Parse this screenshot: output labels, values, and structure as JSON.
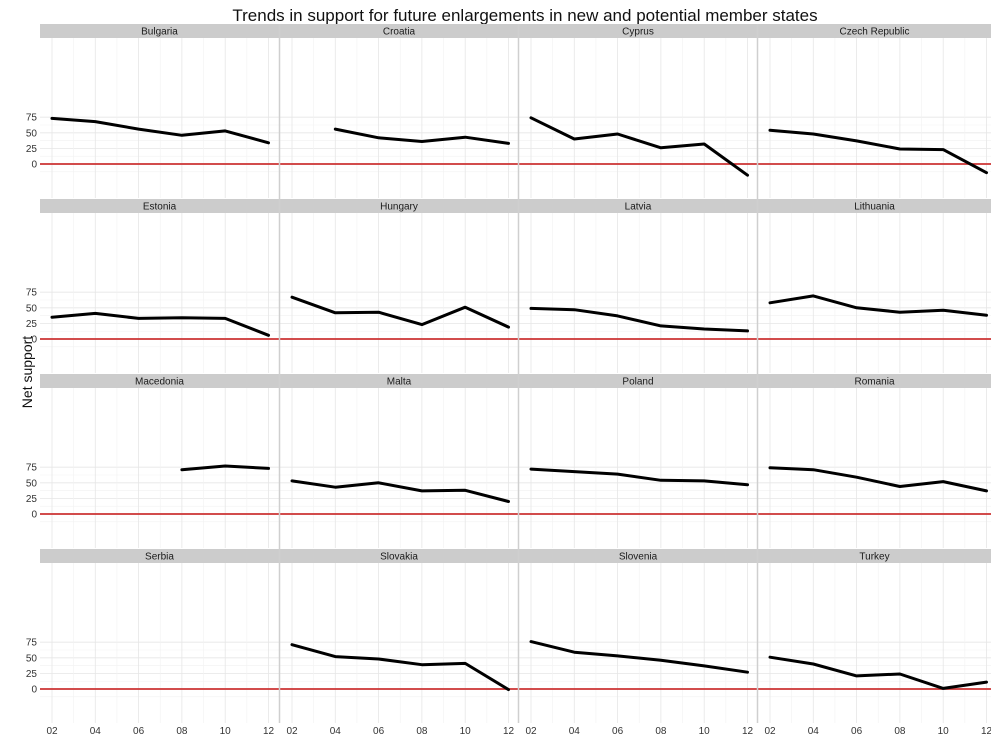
{
  "chart_data": {
    "type": "line",
    "title": "Trends in support for future enlargements in new and potential member states",
    "ylabel": "Net support",
    "xlabel": "",
    "x_ticks": [
      "02",
      "04",
      "06",
      "08",
      "10",
      "12"
    ],
    "x": [
      2,
      4,
      6,
      8,
      10,
      12
    ],
    "y_ticks": [
      0,
      25,
      50,
      75
    ],
    "ylim": [
      -20,
      80
    ],
    "xlim": [
      1.5,
      12.5
    ],
    "reference_line": {
      "y": 0,
      "color": "#cc3333"
    },
    "line_color": "#000000",
    "grid": true,
    "layout": "facet-grid 4x4",
    "panels": [
      {
        "name": "Bulgaria",
        "values": [
          73,
          68,
          56,
          46,
          53,
          34
        ]
      },
      {
        "name": "Croatia",
        "values": [
          null,
          56,
          42,
          36,
          43,
          33
        ]
      },
      {
        "name": "Cyprus",
        "values": [
          74,
          40,
          48,
          26,
          32,
          -18
        ]
      },
      {
        "name": "Czech Republic",
        "values": [
          54,
          48,
          37,
          24,
          23,
          -14
        ]
      },
      {
        "name": "Estonia",
        "values": [
          35,
          41,
          33,
          34,
          33,
          6
        ]
      },
      {
        "name": "Hungary",
        "values": [
          67,
          42,
          43,
          23,
          51,
          19
        ]
      },
      {
        "name": "Latvia",
        "values": [
          49,
          47,
          37,
          21,
          16,
          13
        ]
      },
      {
        "name": "Lithuania",
        "values": [
          58,
          69,
          50,
          43,
          46,
          38
        ]
      },
      {
        "name": "Macedonia",
        "values": [
          null,
          null,
          null,
          71,
          77,
          73
        ]
      },
      {
        "name": "Malta",
        "values": [
          53,
          43,
          50,
          37,
          38,
          20
        ]
      },
      {
        "name": "Poland",
        "values": [
          72,
          68,
          64,
          54,
          53,
          47
        ]
      },
      {
        "name": "Romania",
        "values": [
          74,
          71,
          59,
          44,
          52,
          37
        ]
      },
      {
        "name": "Serbia",
        "values": [
          null,
          null,
          null,
          null,
          null,
          null
        ]
      },
      {
        "name": "Slovakia",
        "values": [
          71,
          52,
          48,
          39,
          41,
          -1
        ]
      },
      {
        "name": "Slovenia",
        "values": [
          76,
          59,
          53,
          46,
          37,
          27
        ]
      },
      {
        "name": "Turkey",
        "values": [
          51,
          40,
          21,
          24,
          1,
          11
        ]
      }
    ]
  }
}
